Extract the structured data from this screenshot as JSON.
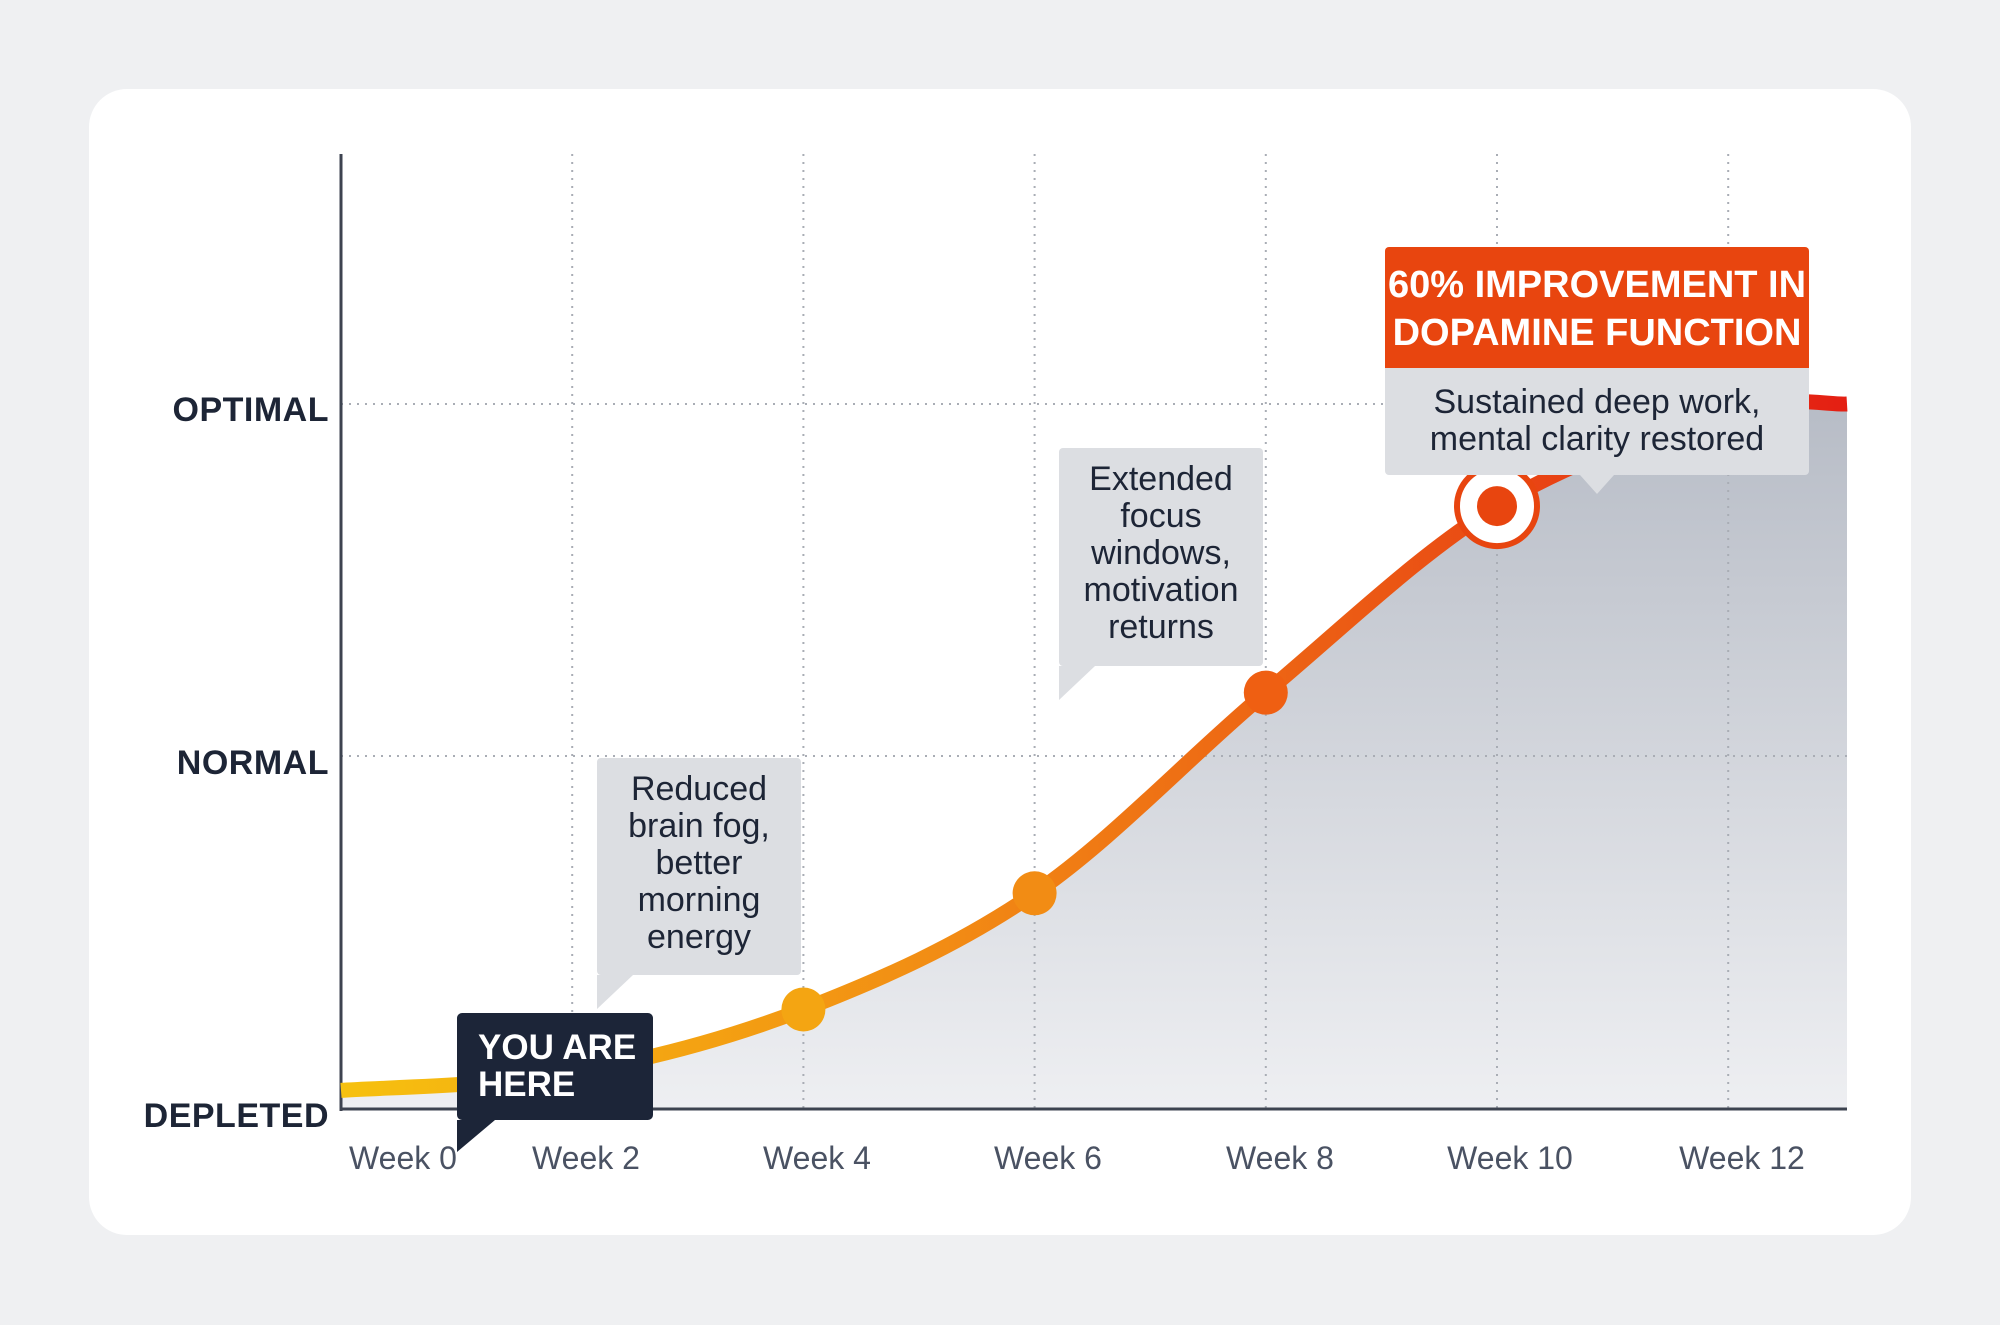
{
  "chart_data": {
    "type": "line",
    "title": "",
    "xlabel": "",
    "ylabel": "",
    "x_tick_labels": [
      "Week 0",
      "Week 2",
      "Week 4",
      "Week 6",
      "Week 8",
      "Week 10",
      "Week 12"
    ],
    "y_tick_labels": [
      "DEPLETED",
      "NORMAL",
      "OPTIMAL"
    ],
    "y_scale_note": "DEPLETED=0, NORMAL=1, OPTIMAL=2",
    "xlim": [
      0,
      13
    ],
    "ylim": [
      0,
      2.6
    ],
    "grid": true,
    "area_fill": true,
    "series": [
      {
        "x": [
          0,
          2,
          4,
          6,
          8,
          10,
          12
        ],
        "y": [
          0.05,
          0.1,
          0.28,
          0.61,
          1.18,
          1.71,
          1.98
        ]
      }
    ],
    "annotations": [
      {
        "x": 2,
        "text_lines": [
          "Reduced",
          "brain fog,",
          "better",
          "morning",
          "energy"
        ]
      },
      {
        "x": 6,
        "text_lines": [
          "Extended",
          "focus",
          "windows,",
          "motivation",
          "returns"
        ]
      },
      {
        "x": 10,
        "headline_lines": [
          "60% IMPROVEMENT IN",
          "DOPAMINE FUNCTION"
        ],
        "text_lines": [
          "Sustained deep work,",
          "mental clarity restored"
        ]
      }
    ],
    "marker_label_lines": [
      "YOU ARE",
      "HERE"
    ],
    "highlight_x": 10,
    "colors": {
      "line_start": "#f6c10f",
      "line_mid": "#f28c14",
      "line_end": "#e41f13",
      "area_top": "#b7bcc6",
      "area_bottom": "#eeeff2",
      "highlight": "#e8450f",
      "dark": "#1c2538"
    }
  }
}
